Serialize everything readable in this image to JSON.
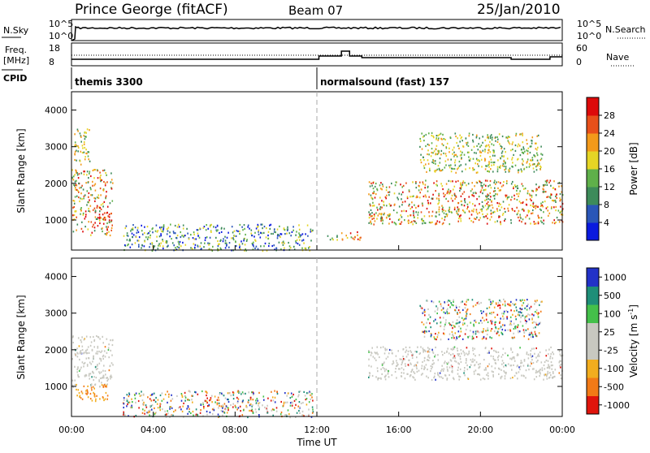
{
  "header": {
    "station": "Prince George (fitACF)",
    "beam": "Beam 07",
    "date": "25/Jan/2010"
  },
  "top_panels": {
    "noise_left_label": "N.Sky",
    "noise_left_ticks": [
      "10^5",
      "10^0"
    ],
    "noise_right_ticks": [
      "10^5",
      "10^0"
    ],
    "noise_right_label": "N.Search",
    "freq_label_line1": "Freq.",
    "freq_label_line2": "[MHz]",
    "freq_ticks": [
      "18",
      "8"
    ],
    "nave_ticks": [
      "60",
      "0"
    ],
    "nave_label": "Nave",
    "cpid_label": "CPID",
    "cpid_programs": [
      {
        "name": "themis 3300",
        "start_hour": 0
      },
      {
        "name": "normalsound (fast) 157",
        "start_hour": 12
      }
    ]
  },
  "x_axis": {
    "label": "Time UT",
    "ticks": [
      "00:00",
      "04:00",
      "08:00",
      "12:00",
      "16:00",
      "20:00",
      "00:00"
    ],
    "tick_hours": [
      0,
      4,
      8,
      12,
      16,
      20,
      24
    ]
  },
  "chart_data": [
    {
      "type": "heatmap",
      "title": "",
      "xlabel": "",
      "ylabel": "Slant Range [km]",
      "xlim": [
        0,
        24
      ],
      "ylim": [
        180,
        4500
      ],
      "yticks": [
        "1000",
        "2000",
        "3000",
        "4000"
      ],
      "ytick_values": [
        1000,
        2000,
        3000,
        4000
      ],
      "colorbar": {
        "label": "Power [dB]",
        "ticks": [
          "4",
          "8",
          "12",
          "16",
          "20",
          "24",
          "28"
        ],
        "colors": [
          "#0a1adf",
          "#2a56b8",
          "#3d8b5a",
          "#5fb04a",
          "#e5d525",
          "#f39a1a",
          "#e8501a",
          "#dd0a0a"
        ]
      },
      "regions": [
        {
          "hours": [
            0.0,
            2.0
          ],
          "range_km": [
            600,
            2400
          ],
          "value": "high"
        },
        {
          "hours": [
            0.1,
            0.9
          ],
          "range_km": [
            2500,
            3500
          ],
          "value": "medium"
        },
        {
          "hours": [
            2.5,
            11.8
          ],
          "range_km": [
            180,
            900
          ],
          "value": "low"
        },
        {
          "hours": [
            12.4,
            14.2
          ],
          "range_km": [
            480,
            700
          ],
          "value": "high"
        },
        {
          "hours": [
            14.5,
            24.0
          ],
          "range_km": [
            900,
            2100
          ],
          "value": "high"
        },
        {
          "hours": [
            17.0,
            23.0
          ],
          "range_km": [
            2300,
            3400
          ],
          "value": "medium"
        }
      ]
    },
    {
      "type": "heatmap",
      "title": "",
      "xlabel": "",
      "ylabel": "Slant Range [km]",
      "xlim": [
        0,
        24
      ],
      "ylim": [
        180,
        4500
      ],
      "yticks": [
        "1000",
        "2000",
        "3000",
        "4000"
      ],
      "ytick_values": [
        1000,
        2000,
        3000,
        4000
      ],
      "colorbar": {
        "label": "Velocity [m s^-1]",
        "ticks": [
          "1000",
          "500",
          "100",
          "25",
          "-25",
          "-100",
          "-500",
          "-1000"
        ],
        "colors": [
          "#2232c8",
          "#1e8e78",
          "#44c04a",
          "#c8c8c0",
          "#c8c8c0",
          "#f2ad1e",
          "#f27a16",
          "#e0140c"
        ]
      },
      "regions": [
        {
          "hours": [
            0.0,
            2.0
          ],
          "range_km": [
            1000,
            2400
          ],
          "value": "ground"
        },
        {
          "hours": [
            0.2,
            1.8
          ],
          "range_km": [
            600,
            1100
          ],
          "value": "negative"
        },
        {
          "hours": [
            2.5,
            11.8
          ],
          "range_km": [
            180,
            900
          ],
          "value": "mixed"
        },
        {
          "hours": [
            14.5,
            24.0
          ],
          "range_km": [
            1200,
            2100
          ],
          "value": "ground"
        },
        {
          "hours": [
            17.0,
            23.0
          ],
          "range_km": [
            2300,
            3400
          ],
          "value": "mixed"
        }
      ]
    }
  ]
}
